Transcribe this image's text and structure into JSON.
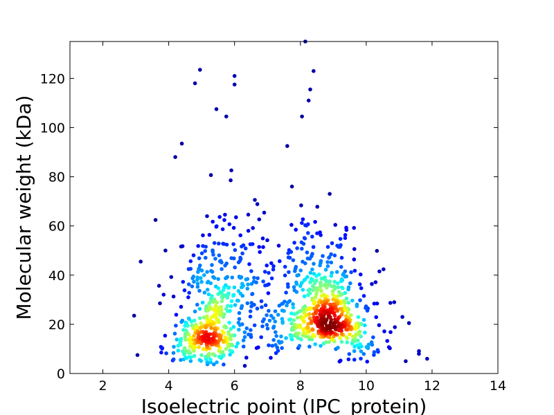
{
  "chart_data": {
    "type": "scatter",
    "xlabel": "Isoelectric point (IPC_protein)",
    "ylabel": "Molecular weight (kDa)",
    "xlim": [
      1,
      14
    ],
    "ylim": [
      0,
      135
    ],
    "xticks": [
      2,
      4,
      6,
      8,
      10,
      12,
      14
    ],
    "yticks": [
      0,
      20,
      40,
      60,
      80,
      100,
      120
    ],
    "grid": false,
    "colormap": "jet (point density)",
    "clusters": [
      {
        "label": "acidic",
        "center_x": 5.2,
        "center_y": 19,
        "density": "high"
      },
      {
        "label": "basic",
        "center_x": 8.8,
        "center_y": 20,
        "density": "very high"
      }
    ],
    "outliers": [
      {
        "x": 2.95,
        "y": 23.5
      },
      {
        "x": 3.05,
        "y": 7.5
      },
      {
        "x": 3.15,
        "y": 45.5
      },
      {
        "x": 3.9,
        "y": 50
      },
      {
        "x": 4.2,
        "y": 88
      },
      {
        "x": 4.4,
        "y": 93.5
      },
      {
        "x": 4.8,
        "y": 118
      },
      {
        "x": 4.95,
        "y": 123.5
      },
      {
        "x": 5.45,
        "y": 107.5
      },
      {
        "x": 5.75,
        "y": 104.5
      },
      {
        "x": 6.0,
        "y": 121
      },
      {
        "x": 6.0,
        "y": 117.5
      },
      {
        "x": 8.05,
        "y": 104.5
      },
      {
        "x": 8.15,
        "y": 135
      },
      {
        "x": 8.25,
        "y": 111
      },
      {
        "x": 8.3,
        "y": 115.5
      },
      {
        "x": 8.4,
        "y": 123
      },
      {
        "x": 7.6,
        "y": 92.5
      },
      {
        "x": 11.1,
        "y": 23
      },
      {
        "x": 11.85,
        "y": 6
      },
      {
        "x": 11.6,
        "y": 8
      },
      {
        "x": 11.3,
        "y": 20.5
      },
      {
        "x": 10.85,
        "y": 29
      },
      {
        "x": 10.4,
        "y": 41.5
      },
      {
        "x": 11.2,
        "y": 5
      }
    ]
  }
}
